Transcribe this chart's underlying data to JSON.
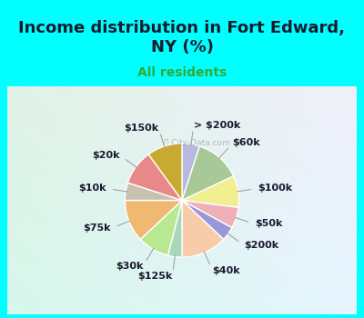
{
  "title": "Income distribution in Fort Edward,\nNY (%)",
  "subtitle": "All residents",
  "bg_color": "#00FFFF",
  "chart_bg_top_left": "#e8f8f0",
  "chart_bg_bottom_right": "#c8eef0",
  "labels": [
    "> $200k",
    "$60k",
    "$100k",
    "$50k",
    "$200k",
    "$40k",
    "$125k",
    "$30k",
    "$75k",
    "$10k",
    "$20k",
    "$150k"
  ],
  "values": [
    5,
    13,
    9,
    6,
    4,
    13,
    4,
    9,
    12,
    5,
    10,
    10
  ],
  "colors": [
    "#b8b8e0",
    "#a8c898",
    "#f0f090",
    "#f0b0b8",
    "#9898d8",
    "#f8cca8",
    "#a8d8b8",
    "#b8e890",
    "#f0b870",
    "#c8c0b0",
    "#e88888",
    "#c8aa30"
  ],
  "startangle": 90,
  "title_fontsize": 13,
  "subtitle_fontsize": 10,
  "label_fontsize": 8
}
